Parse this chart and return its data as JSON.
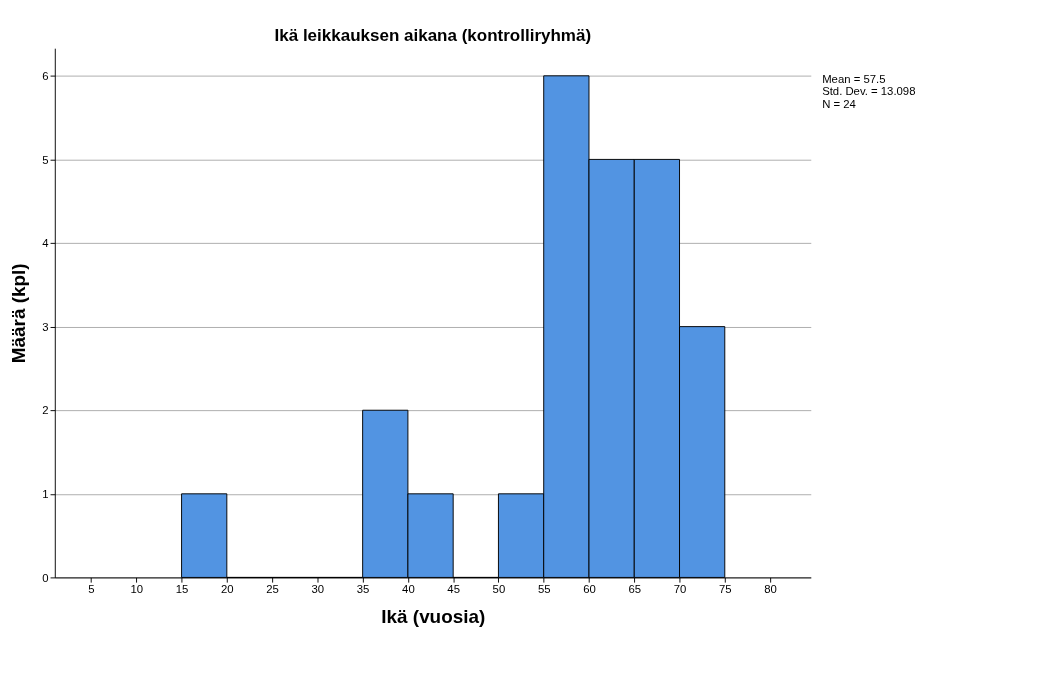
{
  "chart_data": {
    "type": "histogram",
    "title": "Ikä leikkauksen aikana (kontrolliryhmä)",
    "xlabel": "Ikä (vuosia)",
    "ylabel": "Määrä (kpl)",
    "bins": [
      15,
      20,
      25,
      30,
      35,
      40,
      45,
      50,
      55,
      60,
      65,
      70,
      75
    ],
    "values": [
      1,
      0,
      0,
      0,
      2,
      1,
      0,
      1,
      6,
      5,
      5,
      3
    ],
    "color": "#5294e2",
    "xlim": [
      1,
      84.5
    ],
    "xticks": [
      5,
      10,
      15,
      20,
      25,
      30,
      35,
      40,
      45,
      50,
      55,
      60,
      65,
      70,
      75,
      80
    ],
    "ylim": [
      0,
      6.33
    ],
    "yticks": [
      0,
      1,
      2,
      3,
      4,
      5,
      6
    ],
    "grid": "y",
    "annotations": [
      "Mean = 57.5",
      "Std. Dev. = 13.098",
      "N = 24"
    ]
  }
}
